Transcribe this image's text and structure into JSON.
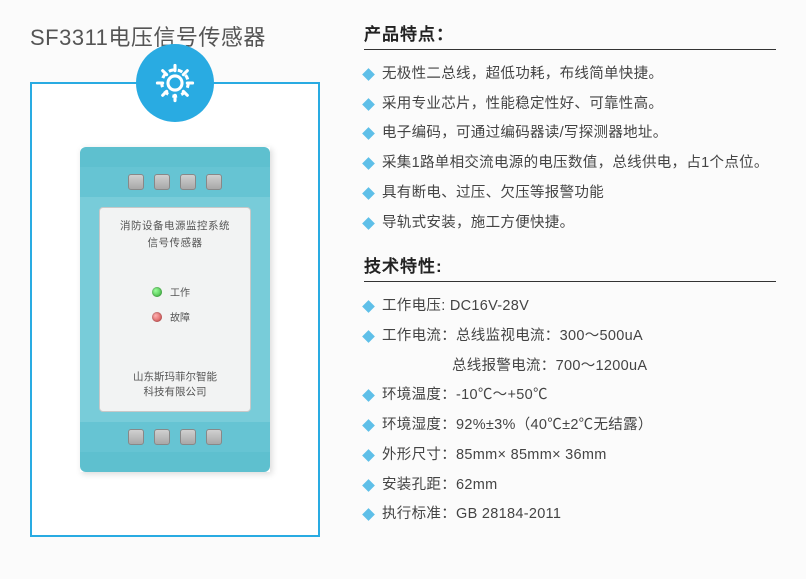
{
  "title": "SF3311电压信号传感器",
  "gear_icon_color": "#ffffff",
  "gear_bg_color": "#29abe2",
  "border_color": "#29abe2",
  "module": {
    "body_color": "#78ccd9",
    "cap_color": "#5ec0cf",
    "terminal_color": "#66c4d3",
    "faceplate_bg": "#f2f3f3",
    "face_title_line1": "消防设备电源监控系统",
    "face_title_line2": "信号传感器",
    "led_work_label": "工作",
    "led_fault_label": "故障",
    "company_line1": "山东斯玛菲尔智能",
    "company_line2": "科技有限公司"
  },
  "features": {
    "heading": "产品特点：",
    "items": [
      "无极性二总线，超低功耗，布线简单快捷。",
      "采用专业芯片，性能稳定性好、可靠性高。",
      "电子编码，可通过编码器读/写探测器地址。",
      "采集1路单相交流电源的电压数值，总线供电，占1个点位。",
      "具有断电、过压、欠压等报警功能",
      "导轨式安装，施工方便快捷。"
    ]
  },
  "specs": {
    "heading": "技术特性:",
    "items": [
      "工作电压:  DC16V-28V",
      "工作电流：总线监视电流：300～500uA",
      "总线报警电流：700～1200uA",
      "环境温度：-10℃～+50℃",
      "环境湿度：92%±3%（40℃±2℃无结露）",
      "外形尺寸：85mm× 85mm× 36mm",
      "安装孔距：62mm",
      "执行标准：GB 28184-2011"
    ],
    "continuation_indices": [
      2
    ]
  },
  "colors": {
    "text": "#444444",
    "heading": "#222222",
    "bullet": "#29abe2",
    "background": "#fbfbfb"
  },
  "typography": {
    "title_fontsize": 22,
    "section_heading_fontsize": 17,
    "body_fontsize": 14.5,
    "faceplate_fontsize": 10.5
  }
}
